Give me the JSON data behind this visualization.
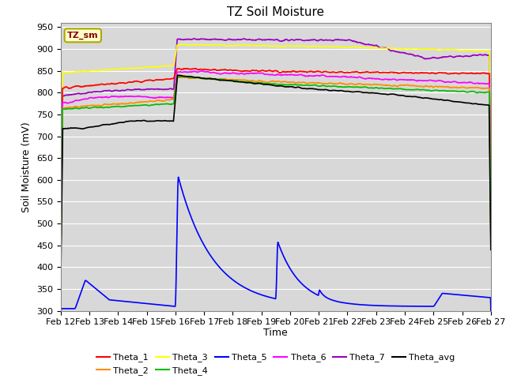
{
  "title": "TZ Soil Moisture",
  "xlabel": "Time",
  "ylabel": "Soil Moisture (mV)",
  "ylim": [
    300,
    960
  ],
  "yticks": [
    300,
    350,
    400,
    450,
    500,
    550,
    600,
    650,
    700,
    750,
    800,
    850,
    900,
    950
  ],
  "num_points": 1500,
  "label_box_text": "TZ_sm",
  "label_box_color": "#ffffcc",
  "label_box_border": "#cccc00",
  "label_text_color": "#8b0000",
  "background_color": "#d8d8d8",
  "grid_color": "#ffffff",
  "colors": {
    "Theta_1": "#ff0000",
    "Theta_2": "#ff8c00",
    "Theta_3": "#ffff00",
    "Theta_4": "#00bb00",
    "Theta_5": "#0000ff",
    "Theta_6": "#ff00ff",
    "Theta_7": "#9900bb",
    "Theta_avg": "#000000"
  },
  "series_order": [
    "Theta_7",
    "Theta_3",
    "Theta_1",
    "Theta_6",
    "Theta_2",
    "Theta_4",
    "Theta_avg",
    "Theta_5"
  ],
  "legend_order": [
    "Theta_1",
    "Theta_2",
    "Theta_3",
    "Theta_4",
    "Theta_5",
    "Theta_6",
    "Theta_7",
    "Theta_avg"
  ],
  "xtick_labels": [
    "Feb 12",
    "Feb 13",
    "Feb 14",
    "Feb 15",
    "Feb 16",
    "Feb 17",
    "Feb 18",
    "Feb 19",
    "Feb 20",
    "Feb 21",
    "Feb 22",
    "Feb 23",
    "Feb 24",
    "Feb 25",
    "Feb 26",
    "Feb 27"
  ],
  "figsize": [
    6.4,
    4.8
  ],
  "dpi": 100
}
